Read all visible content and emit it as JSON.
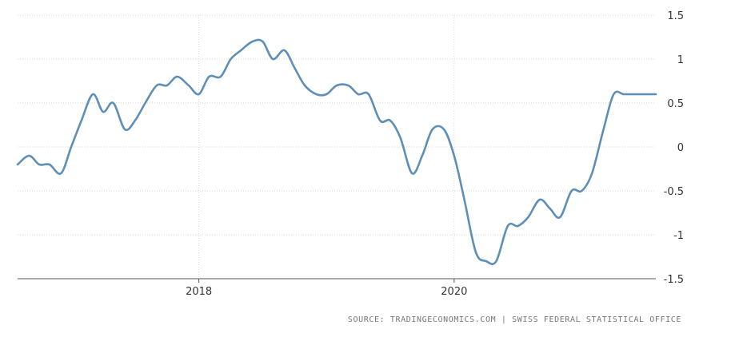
{
  "chart_data": {
    "type": "line",
    "title": "",
    "xlabel": "",
    "ylabel": "",
    "x_ticks": [
      "2018",
      "2020"
    ],
    "y_ticks": [
      "1.5",
      "1",
      "0.5",
      "0",
      "-0.5",
      "-1",
      "-1.5"
    ],
    "xlim": [
      2016.58,
      2021.58
    ],
    "ylim": [
      -1.5,
      1.5
    ],
    "grid": true,
    "legend": "none",
    "line_color": "#5f8fb7",
    "series": [
      {
        "x": [
          2016.58,
          2016.67,
          2016.75,
          2016.83,
          2016.92,
          2017.0,
          2017.08,
          2017.17,
          2017.25,
          2017.33,
          2017.42,
          2017.5,
          2017.58,
          2017.67,
          2017.75,
          2017.83,
          2017.92,
          2018.0,
          2018.08,
          2018.17,
          2018.25,
          2018.33,
          2018.42,
          2018.5,
          2018.58,
          2018.67,
          2018.75,
          2018.83,
          2018.92,
          2019.0,
          2019.08,
          2019.17,
          2019.25,
          2019.33,
          2019.42,
          2019.5,
          2019.58,
          2019.67,
          2019.75,
          2019.83,
          2019.92,
          2020.0,
          2020.08,
          2020.17,
          2020.25,
          2020.33,
          2020.42,
          2020.5,
          2020.58,
          2020.67,
          2020.75,
          2020.83,
          2020.92,
          2021.0,
          2021.08,
          2021.17,
          2021.25,
          2021.33,
          2021.42,
          2021.5,
          2021.58
        ],
        "y": [
          -0.2,
          -0.1,
          -0.2,
          -0.2,
          -0.3,
          0.0,
          0.3,
          0.6,
          0.4,
          0.5,
          0.2,
          0.3,
          0.5,
          0.7,
          0.7,
          0.8,
          0.7,
          0.6,
          0.8,
          0.8,
          1.0,
          1.1,
          1.2,
          1.2,
          1.0,
          1.1,
          0.9,
          0.7,
          0.6,
          0.6,
          0.7,
          0.7,
          0.6,
          0.6,
          0.3,
          0.3,
          0.1,
          -0.3,
          -0.1,
          0.2,
          0.2,
          -0.1,
          -0.6,
          -1.2,
          -1.3,
          -1.3,
          -0.9,
          -0.9,
          -0.8,
          -0.6,
          -0.7,
          -0.8,
          -0.5,
          -0.5,
          -0.3,
          0.2,
          0.6,
          0.6,
          0.6,
          0.6,
          0.6
        ]
      }
    ]
  },
  "source": "SOURCE: TRADINGECONOMICS.COM | SWISS FEDERAL STATISTICAL OFFICE"
}
